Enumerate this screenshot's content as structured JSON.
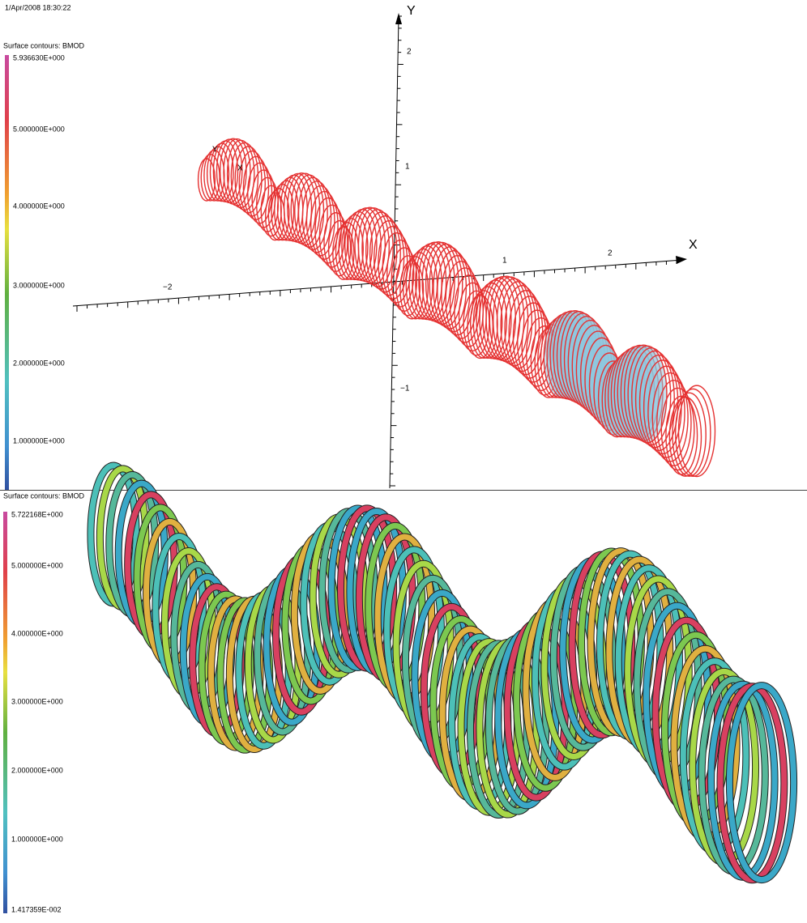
{
  "timestamp": "1/Apr/2008 18:30:22",
  "top_panel": {
    "legend_title": "Surface contours: BMOD",
    "legend_labels": [
      "5.936630E+000",
      "5.000000E+000",
      "4.000000E+000",
      "3.000000E+000",
      "2.000000E+000",
      "1.000000E+000"
    ],
    "axis_titles": [
      "Y",
      "X"
    ],
    "y_tick_labels": [
      "2",
      "1",
      "−1"
    ],
    "x_tick_labels": [
      "−2",
      "1",
      "2"
    ],
    "inset_axis_titles": [
      "Y",
      "X"
    ]
  },
  "bottom_panel": {
    "legend_title": "Surface contours: BMOD",
    "legend_labels": [
      "5.722168E+000",
      "5.000000E+000",
      "4.000000E+000",
      "3.000000E+000",
      "2.000000E+000",
      "1.000000E+000",
      "1.417359E-002"
    ]
  }
}
